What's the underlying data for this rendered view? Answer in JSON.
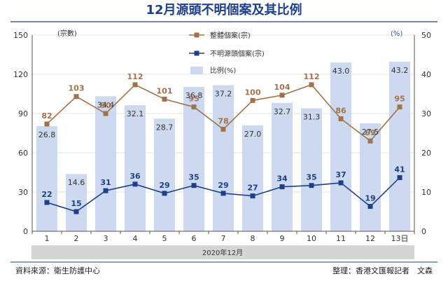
{
  "chart_data": {
    "type": "bar",
    "title": "12月源頭不明個案及其比例",
    "categories": [
      "1",
      "2",
      "3",
      "4",
      "5",
      "6",
      "7",
      "8",
      "9",
      "10",
      "11",
      "12",
      "13日"
    ],
    "series": [
      {
        "name": "整體個案(宗)",
        "type": "line",
        "axis": "left",
        "values": [
          82,
          103,
          90,
          112,
          101,
          95,
          78,
          100,
          104,
          112,
          86,
          69,
          95
        ]
      },
      {
        "name": "不明源頭個案(宗)",
        "type": "line",
        "axis": "left",
        "values": [
          22,
          15,
          31,
          36,
          29,
          35,
          29,
          27,
          34,
          35,
          37,
          19,
          41
        ]
      },
      {
        "name": "比例(%)",
        "type": "bar",
        "axis": "right",
        "values": [
          26.8,
          14.6,
          34.4,
          32.1,
          28.7,
          36.8,
          37.2,
          27.0,
          32.7,
          31.3,
          43.0,
          27.5,
          43.2
        ]
      }
    ],
    "value_labels": {
      "total": [
        "82",
        "103",
        "90",
        "112",
        "101",
        "95",
        "78",
        "100",
        "104",
        "112",
        "86",
        "69",
        "95"
      ],
      "unknown": [
        "22",
        "15",
        "31",
        "36",
        "29",
        "35",
        "29",
        "27",
        "34",
        "35",
        "37",
        "19",
        "41"
      ],
      "ratio": [
        "26.8",
        "14.6",
        "34.4",
        "32.1",
        "28.7",
        "36.8",
        "37.2",
        "27.0",
        "32.7",
        "31.3",
        "43.0",
        "27.5",
        "43.2"
      ]
    },
    "left_axis": {
      "label": "(宗數)",
      "range": [
        0,
        150
      ],
      "ticks": [
        0,
        30,
        60,
        90,
        120,
        150
      ]
    },
    "right_axis": {
      "label": "(%)",
      "range": [
        0,
        50
      ],
      "ticks": [
        0,
        10,
        20,
        30,
        40,
        50
      ]
    },
    "xlabel": "2020年12月",
    "legend_position": "top-center",
    "colors": {
      "total": "#a0724c",
      "unknown": "#1f3f86",
      "bar": "#ccd9ee",
      "text": "#333333",
      "title": "#1f3f86",
      "total_label": "#a0724c",
      "unknown_label": "#1f3f86"
    }
  },
  "footer": {
    "source": "資料來源：衛生防護中心",
    "credit": "整理：香港文匯報記者　文森"
  }
}
